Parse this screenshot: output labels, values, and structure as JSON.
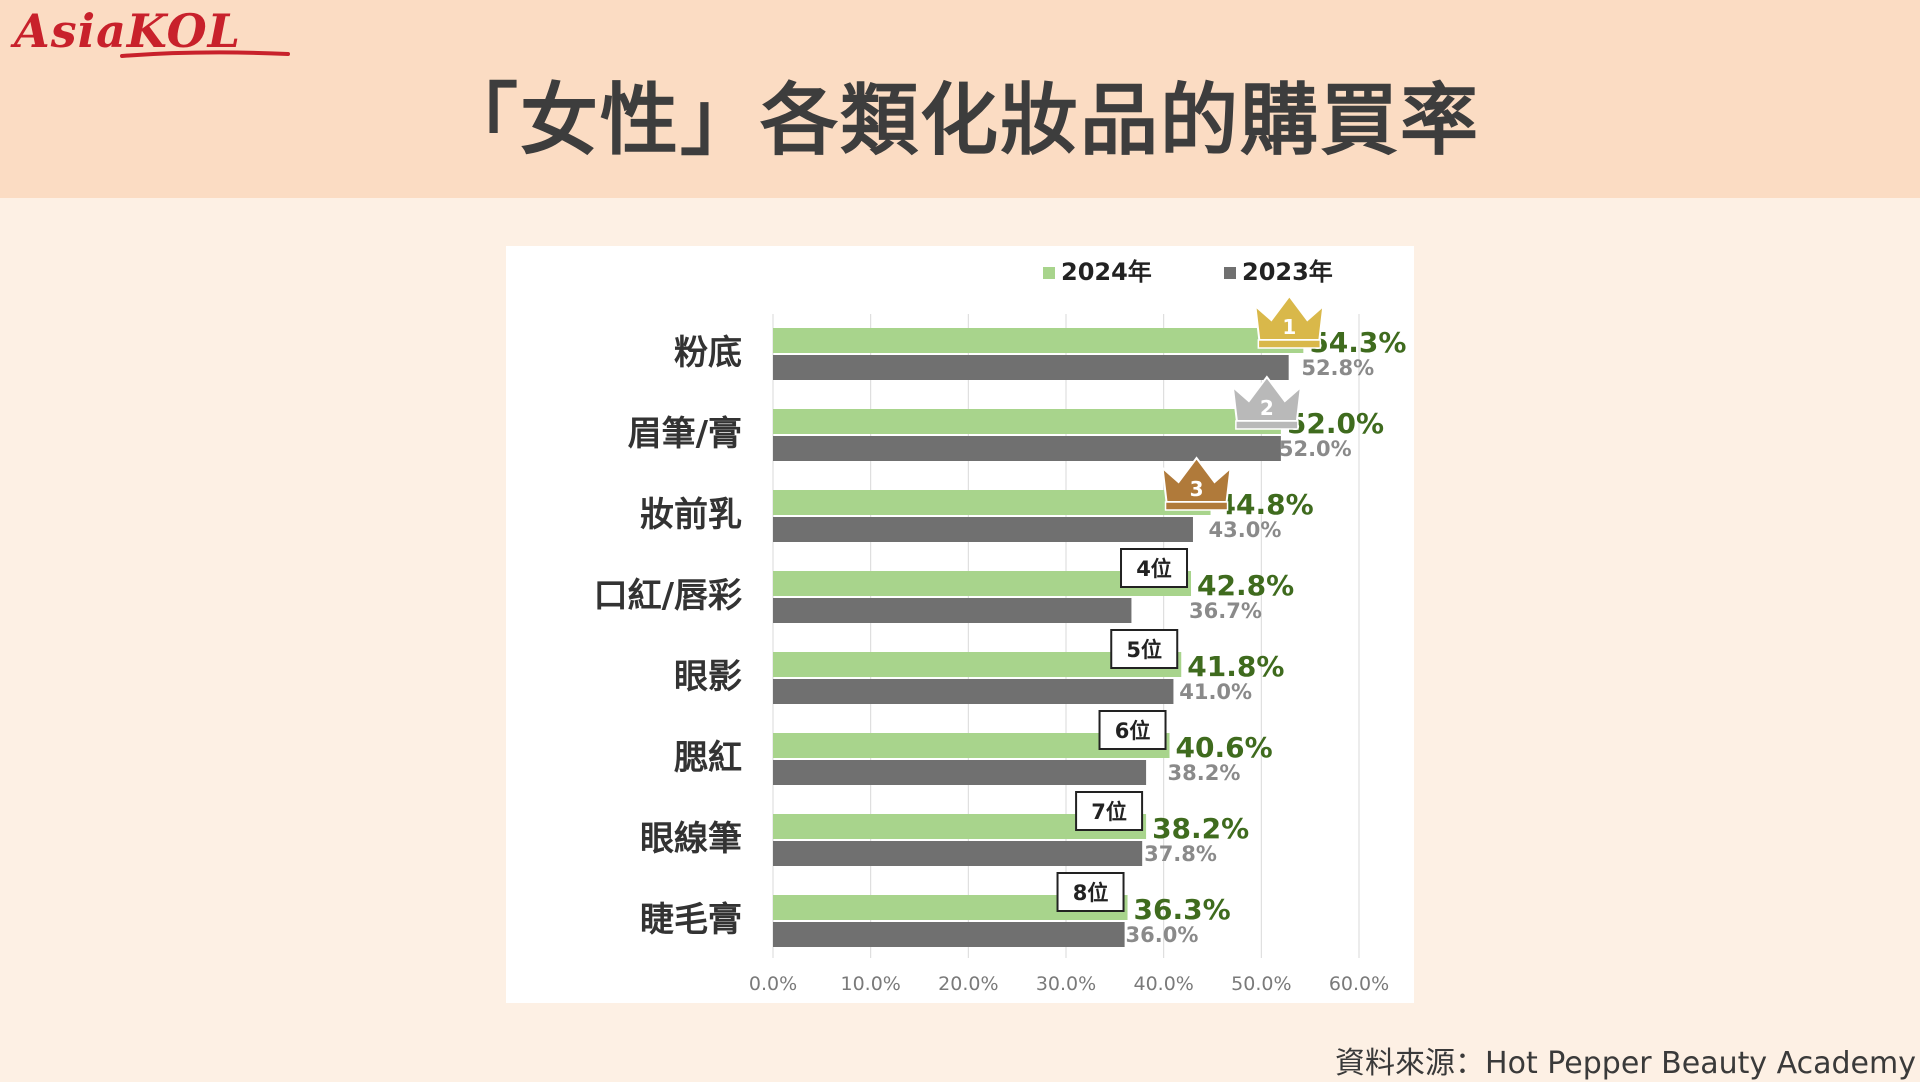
{
  "brand": {
    "logo_text": "AsiaKOL"
  },
  "page_title": "「女性」各類化妝品的購買率",
  "source_note": "資料來源：Hot Pepper Beauty Academy",
  "colors": {
    "series_2024": "#a8d48c",
    "series_2023": "#707070",
    "label_2024": "#3f6b1e",
    "label_2023": "#8a8a8a",
    "gold": "#d9b84a",
    "silver": "#b9b9b9",
    "bronze": "#b07a3a"
  },
  "chart_data": {
    "type": "bar",
    "orientation": "horizontal",
    "categories": [
      "粉底",
      "眉筆/膏",
      "妝前乳",
      "口紅/唇彩",
      "眼影",
      "腮紅",
      "眼線筆",
      "睫毛膏"
    ],
    "series": [
      {
        "name": "2024年",
        "values": [
          54.3,
          52.0,
          44.8,
          42.8,
          41.8,
          40.6,
          38.2,
          36.3
        ]
      },
      {
        "name": "2023年",
        "values": [
          52.8,
          52.0,
          43.0,
          36.7,
          41.0,
          38.2,
          37.8,
          36.0
        ]
      }
    ],
    "value_labels_2024": [
      "54.3%",
      "52.0%",
      "44.8%",
      "42.8%",
      "41.8%",
      "40.6%",
      "38.2%",
      "36.3%"
    ],
    "value_labels_2023": [
      "52.8%",
      "52.0%",
      "43.0%",
      "36.7%",
      "41.0%",
      "38.2%",
      "37.8%",
      "36.0%"
    ],
    "rank_badges": [
      {
        "category": "粉底",
        "label": "1",
        "style": "gold-crown"
      },
      {
        "category": "眉筆/膏",
        "label": "2",
        "style": "silver-crown"
      },
      {
        "category": "妝前乳",
        "label": "3",
        "style": "bronze-crown"
      },
      {
        "category": "口紅/唇彩",
        "label": "4位",
        "style": "box"
      },
      {
        "category": "眼影",
        "label": "5位",
        "style": "box"
      },
      {
        "category": "腮紅",
        "label": "6位",
        "style": "box"
      },
      {
        "category": "眼線筆",
        "label": "7位",
        "style": "box"
      },
      {
        "category": "睫毛膏",
        "label": "8位",
        "style": "box"
      }
    ],
    "xlim": [
      0,
      60
    ],
    "x_ticks": [
      0,
      10,
      20,
      30,
      40,
      50,
      60
    ],
    "x_tick_labels": [
      "0.0%",
      "10.0%",
      "20.0%",
      "30.0%",
      "40.0%",
      "50.0%",
      "60.0%"
    ],
    "grid": true,
    "legend_position": "top-right"
  }
}
